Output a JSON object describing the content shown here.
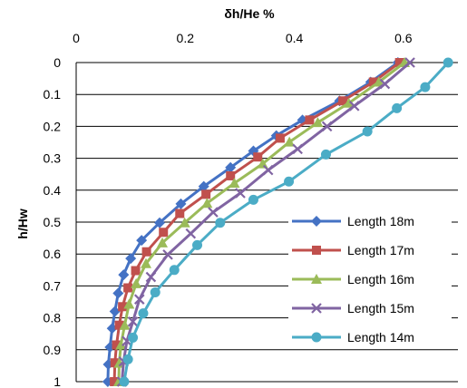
{
  "chart_data": {
    "type": "line",
    "xlabel": "δh/He %",
    "ylabel": "h/Hw",
    "x_axis_position": "top",
    "y_axis_inverted": true,
    "xlim": [
      0,
      0.7
    ],
    "ylim": [
      0,
      1
    ],
    "x_ticks": [
      "0",
      "0.2",
      "0.4",
      "0.6"
    ],
    "y_ticks": [
      "0",
      "0.1",
      "0.2",
      "0.3",
      "0.4",
      "0.5",
      "0.6",
      "0.7",
      "0.8",
      "0.9",
      "1"
    ],
    "grid": "horizontal",
    "legend_position": "lower-right",
    "series": [
      {
        "name": "Length 18m",
        "color": "#4472C4",
        "marker": "diamond",
        "points": [
          [
            0.59,
            0
          ],
          [
            0.54,
            0.061
          ],
          [
            0.483,
            0.12
          ],
          [
            0.415,
            0.18
          ],
          [
            0.367,
            0.229
          ],
          [
            0.325,
            0.277
          ],
          [
            0.283,
            0.329
          ],
          [
            0.234,
            0.388
          ],
          [
            0.192,
            0.443
          ],
          [
            0.153,
            0.502
          ],
          [
            0.12,
            0.557
          ],
          [
            0.1,
            0.614
          ],
          [
            0.087,
            0.665
          ],
          [
            0.077,
            0.723
          ],
          [
            0.071,
            0.78
          ],
          [
            0.066,
            0.833
          ],
          [
            0.062,
            0.892
          ],
          [
            0.059,
            0.946
          ],
          [
            0.058,
            1.0
          ]
        ]
      },
      {
        "name": "Length 17m",
        "color": "#C0504D",
        "marker": "square",
        "points": [
          [
            0.593,
            0
          ],
          [
            0.545,
            0.061
          ],
          [
            0.489,
            0.12
          ],
          [
            0.428,
            0.18
          ],
          [
            0.374,
            0.237
          ],
          [
            0.333,
            0.296
          ],
          [
            0.283,
            0.355
          ],
          [
            0.238,
            0.413
          ],
          [
            0.19,
            0.473
          ],
          [
            0.16,
            0.532
          ],
          [
            0.129,
            0.593
          ],
          [
            0.109,
            0.652
          ],
          [
            0.095,
            0.706
          ],
          [
            0.085,
            0.765
          ],
          [
            0.079,
            0.823
          ],
          [
            0.074,
            0.885
          ],
          [
            0.071,
            0.941
          ],
          [
            0.07,
            1.0
          ]
        ]
      },
      {
        "name": "Length 16m",
        "color": "#9BBB59",
        "marker": "triangle",
        "points": [
          [
            0.602,
            0
          ],
          [
            0.555,
            0.061
          ],
          [
            0.5,
            0.127
          ],
          [
            0.443,
            0.188
          ],
          [
            0.391,
            0.249
          ],
          [
            0.342,
            0.317
          ],
          [
            0.29,
            0.378
          ],
          [
            0.24,
            0.441
          ],
          [
            0.199,
            0.502
          ],
          [
            0.158,
            0.565
          ],
          [
            0.128,
            0.63
          ],
          [
            0.11,
            0.693
          ],
          [
            0.097,
            0.757
          ],
          [
            0.089,
            0.823
          ],
          [
            0.082,
            0.885
          ],
          [
            0.079,
            0.942
          ],
          [
            0.078,
            1.0
          ]
        ]
      },
      {
        "name": "Length 15m",
        "color": "#8064A2",
        "marker": "x",
        "points": [
          [
            0.612,
            0
          ],
          [
            0.566,
            0.067
          ],
          [
            0.51,
            0.136
          ],
          [
            0.46,
            0.2
          ],
          [
            0.406,
            0.271
          ],
          [
            0.352,
            0.337
          ],
          [
            0.301,
            0.409
          ],
          [
            0.251,
            0.469
          ],
          [
            0.21,
            0.536
          ],
          [
            0.168,
            0.602
          ],
          [
            0.137,
            0.672
          ],
          [
            0.116,
            0.742
          ],
          [
            0.104,
            0.812
          ],
          [
            0.093,
            0.873
          ],
          [
            0.087,
            0.937
          ],
          [
            0.084,
            1.0
          ]
        ]
      },
      {
        "name": "Length 14m",
        "color": "#4BACC6",
        "marker": "circle",
        "points": [
          [
            0.682,
            0
          ],
          [
            0.64,
            0.077
          ],
          [
            0.588,
            0.143
          ],
          [
            0.534,
            0.216
          ],
          [
            0.458,
            0.288
          ],
          [
            0.39,
            0.373
          ],
          [
            0.325,
            0.43
          ],
          [
            0.264,
            0.502
          ],
          [
            0.222,
            0.572
          ],
          [
            0.18,
            0.65
          ],
          [
            0.145,
            0.72
          ],
          [
            0.123,
            0.786
          ],
          [
            0.104,
            0.862
          ],
          [
            0.095,
            0.93
          ],
          [
            0.088,
            1.0
          ]
        ]
      }
    ]
  }
}
